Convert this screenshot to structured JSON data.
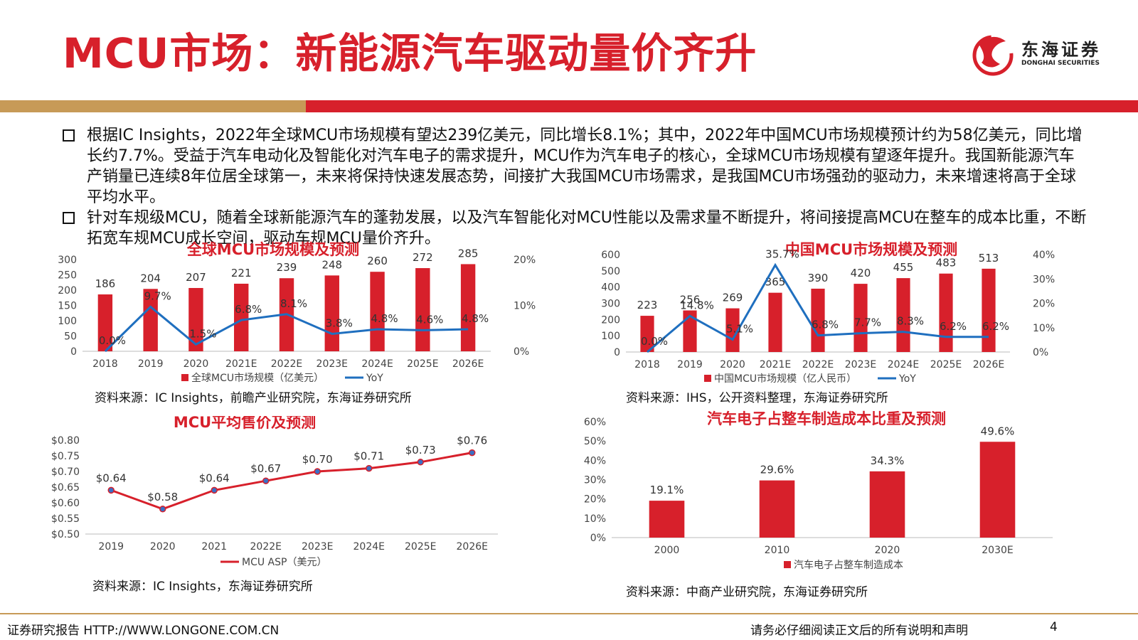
{
  "header": {
    "title": "MCU市场：新能源汽车驱动量价齐升",
    "logo_cn": "东海证券",
    "logo_en": "DONGHAI SECURITIES"
  },
  "colors": {
    "accent": "#d7202b",
    "gold": "#c79a57",
    "line": "#1f6fbf"
  },
  "bullets": [
    "根据IC Insights，2022年全球MCU市场规模有望达239亿美元，同比增长8.1%；其中，2022年中国MCU市场规模预计约为58亿美元，同比增长约7.7%。受益于汽车电动化及智能化对汽车电子的需求提升，MCU作为汽车电子的核心，全球MCU市场规模有望逐年提升。我国新能源汽车产销量已连续8年位居全球第一，未来将保持快速发展态势，间接扩大我国MCU市场需求，是我国MCU市场强劲的驱动力，未来增速将高于全球平均水平。",
    "针对车规级MCU，随着全球新能源汽车的蓬勃发展，以及汽车智能化对MCU性能以及需求量不断提升，将间接提高MCU在整车的成本比重，不断拓宽车规MCU成长空间，驱动车规MCU量价齐升。"
  ],
  "chart_data": [
    {
      "type": "bar",
      "title": "全球MCU市场规模及预测",
      "categories": [
        "2018",
        "2019",
        "2020",
        "2021E",
        "2022E",
        "2023E",
        "2024E",
        "2025E",
        "2026E"
      ],
      "series": [
        {
          "name": "全球MCU市场规模（亿美元）",
          "kind": "bar",
          "values": [
            186,
            204,
            207,
            221,
            239,
            248,
            260,
            272,
            285
          ],
          "labels": [
            "186",
            "204",
            "207",
            "221",
            "239",
            "248",
            "260",
            "272",
            "285"
          ]
        },
        {
          "name": "YoY",
          "kind": "line",
          "values": [
            0.0,
            9.7,
            1.5,
            6.8,
            8.1,
            3.8,
            4.8,
            4.6,
            4.8
          ],
          "labels": [
            "0.0%",
            "9.7%",
            "1.5%",
            "6.8%",
            "8.1%",
            "3.8%",
            "4.8%",
            "4.6%",
            "4.8%"
          ]
        }
      ],
      "ylim": [
        0,
        300
      ],
      "yticks": [
        "0",
        "50",
        "100",
        "150",
        "200",
        "250",
        "300"
      ],
      "y2lim": [
        0,
        20
      ],
      "y2ticks": [
        "0%",
        "10%",
        "20%"
      ],
      "legend": "bottom"
    },
    {
      "type": "bar",
      "title": "中国MCU市场规模及预测",
      "categories": [
        "2018",
        "2019",
        "2020",
        "2021E",
        "2022E",
        "2023E",
        "2024E",
        "2025E",
        "2026E"
      ],
      "series": [
        {
          "name": "中国MCU市场规模（亿人民币）",
          "kind": "bar",
          "values": [
            223,
            256,
            269,
            365,
            390,
            420,
            455,
            483,
            513
          ],
          "labels": [
            "223",
            "256",
            "269",
            "365",
            "390",
            "420",
            "455",
            "483",
            "513"
          ]
        },
        {
          "name": "YoY",
          "kind": "line",
          "values": [
            0.0,
            14.8,
            5.1,
            35.7,
            6.8,
            7.7,
            8.3,
            6.2,
            6.2
          ],
          "labels": [
            "0.0%",
            "14.8%",
            "5.1%",
            "35.7%",
            "6.8%",
            "7.7%",
            "8.3%",
            "6.2%",
            "6.2%"
          ]
        }
      ],
      "ylim": [
        0,
        600
      ],
      "yticks": [
        "0",
        "100",
        "200",
        "300",
        "400",
        "500",
        "600"
      ],
      "y2lim": [
        0,
        40
      ],
      "y2ticks": [
        "0%",
        "10%",
        "20%",
        "30%",
        "40%"
      ],
      "legend": "bottom"
    },
    {
      "type": "line",
      "title": "MCU平均售价及预测",
      "categories": [
        "2019",
        "2020",
        "2021",
        "2022E",
        "2023E",
        "2024E",
        "2025E",
        "2026E"
      ],
      "series": [
        {
          "name": "MCU ASP（美元）",
          "kind": "line",
          "values": [
            0.64,
            0.58,
            0.64,
            0.67,
            0.7,
            0.71,
            0.73,
            0.76
          ],
          "labels": [
            "$0.64",
            "$0.58",
            "$0.64",
            "$0.67",
            "$0.70",
            "$0.71",
            "$0.73",
            "$0.76"
          ]
        }
      ],
      "ylim": [
        0.5,
        0.8
      ],
      "yticks": [
        "$0.50",
        "$0.55",
        "$0.60",
        "$0.65",
        "$0.70",
        "$0.75",
        "$0.80"
      ],
      "legend": "bottom"
    },
    {
      "type": "bar",
      "title": "汽车电子占整车制造成本比重及预测",
      "categories": [
        "2000",
        "2010",
        "2020",
        "2030E"
      ],
      "series": [
        {
          "name": "汽车电子占整车制造成本",
          "kind": "bar",
          "values": [
            19.1,
            29.6,
            34.3,
            49.6
          ],
          "labels": [
            "19.1%",
            "29.6%",
            "34.3%",
            "49.6%"
          ]
        }
      ],
      "ylim": [
        0,
        60
      ],
      "yticks": [
        "0%",
        "10%",
        "20%",
        "30%",
        "40%",
        "50%",
        "60%"
      ],
      "legend": "bottom"
    }
  ],
  "sources": [
    "资料来源：IC Insights，前瞻产业研究院，东海证券研究所",
    "资料来源：IHS，公开资料整理，东海证券研究所",
    "资料来源：IC Insights，东海证券研究所",
    "资料来源：中商产业研究院，东海证券研究所"
  ],
  "footer": {
    "left": "证券研究报告 HTTP://WWW.LONGONE.COM.CN",
    "right": "请务必仔细阅读正文后的所有说明和声明",
    "page": "4"
  }
}
